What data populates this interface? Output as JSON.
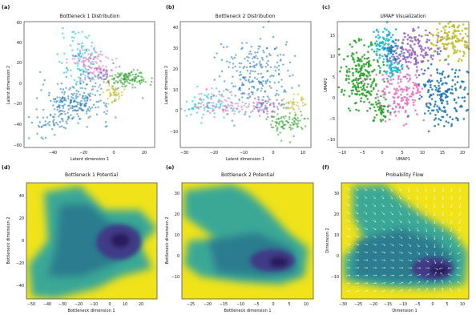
{
  "figure": {
    "panels": [
      {
        "letter": "(a)",
        "title": "Bottleneck 1 Distribution",
        "xlabel": "Latent dimension 1",
        "ylabel": "Latent dimension 2",
        "xticks": [
          "−40",
          "−20",
          "0",
          "20"
        ],
        "yticks": [
          "60",
          "40",
          "20",
          "0",
          "−20",
          "−40",
          "−60"
        ]
      },
      {
        "letter": "(b)",
        "title": "Bottleneck 2 Distribution",
        "xlabel": "Latent dimension 1",
        "ylabel": "Latent dimension 2",
        "xticks": [
          "−30",
          "−20",
          "−10",
          "0",
          "10"
        ],
        "yticks": [
          "40",
          "30",
          "20",
          "10",
          "0",
          "−10"
        ]
      },
      {
        "letter": "(c)",
        "title": "UMAP Visualization",
        "xlabel": "UMAP1",
        "ylabel": "UMAP2",
        "xticks": [
          "−10",
          "−5",
          "0",
          "5",
          "10",
          "15",
          "20"
        ],
        "yticks": [
          "15",
          "10",
          "5",
          "0",
          "−5",
          "−10"
        ]
      },
      {
        "letter": "(d)",
        "title": "Bottleneck 1 Potential",
        "xlabel": "Bottleneck dimension 1",
        "ylabel": "Bottleneck dimension 2",
        "xticks": [
          "−50",
          "−40",
          "−30",
          "−20",
          "−10",
          "0",
          "10",
          "20"
        ],
        "yticks": [
          "40",
          "20",
          "0",
          "−20",
          "−40"
        ]
      },
      {
        "letter": "(e)",
        "title": "Bottleneck 2 Potential",
        "xlabel": "Bottleneck dimension 1",
        "ylabel": "Bottleneck dimension 2",
        "xticks": [
          "−25",
          "−20",
          "−15",
          "−10",
          "−5",
          "0",
          "5",
          "10"
        ],
        "yticks": [
          "30",
          "20",
          "10",
          "0",
          "−10"
        ]
      },
      {
        "letter": "(f)",
        "title": "Probability Flow",
        "xlabel": "Dimension 1",
        "ylabel": "Dimension 2",
        "xticks": [
          "−30",
          "−25",
          "−20",
          "−15",
          "−10",
          "−5",
          "0",
          "5",
          "10"
        ],
        "yticks": [
          "30",
          "20",
          "10",
          "0",
          "−10"
        ]
      }
    ]
  },
  "colors": {
    "blue": "#1f77b4",
    "green": "#2ca02c",
    "olive": "#bcbd22",
    "purple": "#9467bd",
    "pink": "#e377c2",
    "cyan": "#17becf",
    "yellow": "#f0e31a",
    "teal": "#2a9d8f",
    "navy": "#3b2a78"
  },
  "chart_data": [
    {
      "type": "scatter",
      "title": "Bottleneck 1 Distribution",
      "xlabel": "Latent dimension 1",
      "ylabel": "Latent dimension 2",
      "xlim": [
        -58,
        33
      ],
      "ylim": [
        -62,
        60
      ],
      "clusters": [
        {
          "color": "blue",
          "center": [
            -22,
            -18
          ],
          "spread": [
            12,
            10
          ],
          "n": 230
        },
        {
          "color": "blue",
          "center": [
            -40,
            -40
          ],
          "spread": [
            7,
            6
          ],
          "n": 40
        },
        {
          "color": "cyan",
          "center": [
            -18,
            22
          ],
          "spread": [
            7,
            14
          ],
          "n": 110
        },
        {
          "color": "pink",
          "center": [
            -10,
            20
          ],
          "spread": [
            8,
            8
          ],
          "n": 90
        },
        {
          "color": "purple",
          "center": [
            -6,
            8
          ],
          "spread": [
            5,
            4
          ],
          "n": 50
        },
        {
          "color": "green",
          "center": [
            15,
            5
          ],
          "spread": [
            7,
            4
          ],
          "n": 120
        },
        {
          "color": "olive",
          "center": [
            4,
            -8
          ],
          "spread": [
            3,
            5
          ],
          "n": 45
        }
      ]
    },
    {
      "type": "scatter",
      "title": "Bottleneck 2 Distribution",
      "xlabel": "Latent dimension 1",
      "ylabel": "Latent dimension 2",
      "xlim": [
        -31,
        13
      ],
      "ylim": [
        -18,
        42
      ],
      "clusters": [
        {
          "color": "blue",
          "center": [
            -6,
            16
          ],
          "spread": [
            6,
            9
          ],
          "n": 240
        },
        {
          "color": "cyan",
          "center": [
            -22,
            2
          ],
          "spread": [
            5,
            3
          ],
          "n": 80
        },
        {
          "color": "pink",
          "center": [
            -14,
            3
          ],
          "spread": [
            6,
            3
          ],
          "n": 90
        },
        {
          "color": "purple",
          "center": [
            -3,
            1
          ],
          "spread": [
            3,
            2
          ],
          "n": 50
        },
        {
          "color": "green",
          "center": [
            5,
            -6
          ],
          "spread": [
            3,
            3
          ],
          "n": 90
        },
        {
          "color": "olive",
          "center": [
            8,
            3
          ],
          "spread": [
            2,
            2
          ],
          "n": 35
        }
      ]
    },
    {
      "type": "scatter",
      "title": "UMAP Visualization",
      "xlabel": "UMAP1",
      "ylabel": "UMAP2",
      "xlim": [
        -11,
        22
      ],
      "ylim": [
        -12,
        18
      ],
      "clusters": [
        {
          "color": "green",
          "center": [
            -5,
            5
          ],
          "spread": [
            3,
            4
          ],
          "n": 220
        },
        {
          "color": "cyan",
          "center": [
            1,
            13
          ],
          "spread": [
            1.5,
            2
          ],
          "n": 80
        },
        {
          "color": "blue",
          "center": [
            3,
            11
          ],
          "spread": [
            1,
            1.5
          ],
          "n": 40
        },
        {
          "color": "purple",
          "center": [
            9,
            11
          ],
          "spread": [
            3,
            2.5
          ],
          "n": 150
        },
        {
          "color": "olive",
          "center": [
            18,
            14
          ],
          "spread": [
            2.5,
            2.5
          ],
          "n": 140
        },
        {
          "color": "pink",
          "center": [
            5,
            1
          ],
          "spread": [
            3,
            3.5
          ],
          "n": 170
        },
        {
          "color": "cyan",
          "center": [
            3,
            7
          ],
          "spread": [
            1,
            1
          ],
          "n": 40
        },
        {
          "color": "blue",
          "center": [
            15,
            0
          ],
          "spread": [
            3,
            4
          ],
          "n": 180
        },
        {
          "color": "green",
          "center": [
            0,
            -3
          ],
          "spread": [
            1,
            1.5
          ],
          "n": 40
        }
      ]
    },
    {
      "type": "heatmap",
      "title": "Bottleneck 1 Potential",
      "xlabel": "Bottleneck dimension 1",
      "ylabel": "Bottleneck dimension 2",
      "xlim": [
        -57,
        27
      ],
      "ylim": [
        -47,
        57
      ]
    },
    {
      "type": "heatmap",
      "title": "Bottleneck 2 Potential",
      "xlabel": "Bottleneck dimension 1",
      "ylabel": "Bottleneck dimension 2",
      "xlim": [
        -29,
        11
      ],
      "ylim": [
        -17,
        39
      ]
    },
    {
      "type": "heatmap",
      "title": "Probability Flow",
      "xlabel": "Dimension 1",
      "ylabel": "Dimension 2",
      "xlim": [
        -31,
        12
      ],
      "ylim": [
        -17,
        39
      ]
    }
  ]
}
